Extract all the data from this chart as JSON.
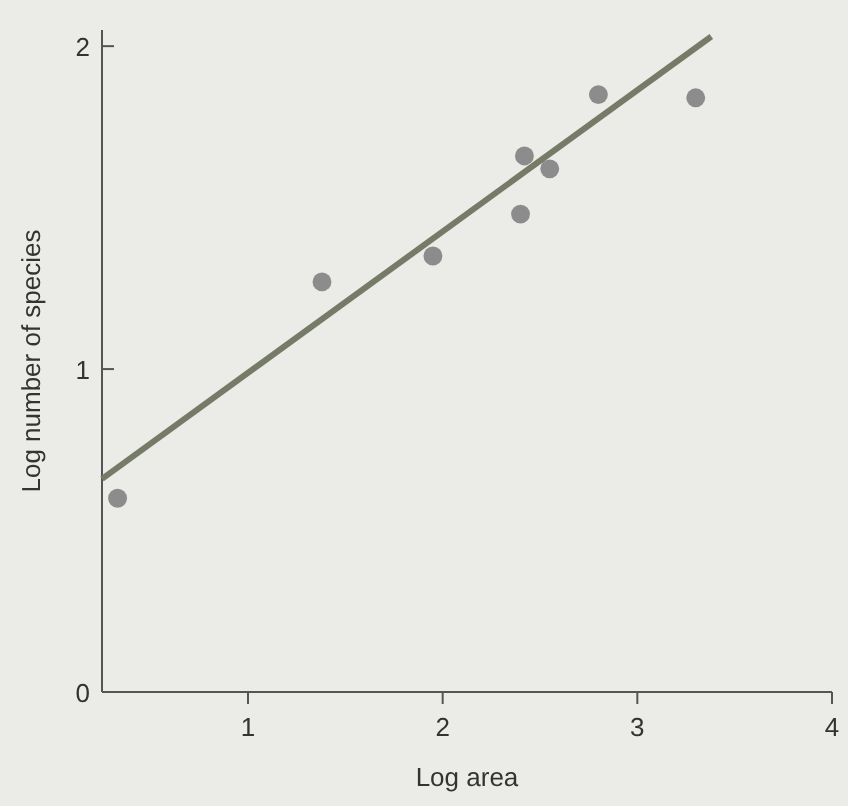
{
  "chart_data": {
    "type": "scatter",
    "xlabel": "Log area",
    "ylabel": "Log number of species",
    "xlim": [
      0.25,
      4
    ],
    "ylim": [
      0,
      2.05
    ],
    "xticks": [
      1,
      2,
      3,
      4
    ],
    "yticks": [
      0,
      1,
      2
    ],
    "grid": false,
    "series": [
      {
        "marker": "circle",
        "color": "#8c8c8c",
        "x": [
          0.33,
          1.38,
          1.95,
          2.4,
          2.42,
          2.55,
          2.8,
          3.3
        ],
        "values": [
          0.6,
          1.27,
          1.35,
          1.48,
          1.66,
          1.62,
          1.85,
          1.84
        ]
      },
      {
        "type": "line",
        "marker": "none",
        "color": "#767b68",
        "x": [
          0.25,
          3.38
        ],
        "values": [
          0.66,
          2.03
        ]
      }
    ]
  }
}
